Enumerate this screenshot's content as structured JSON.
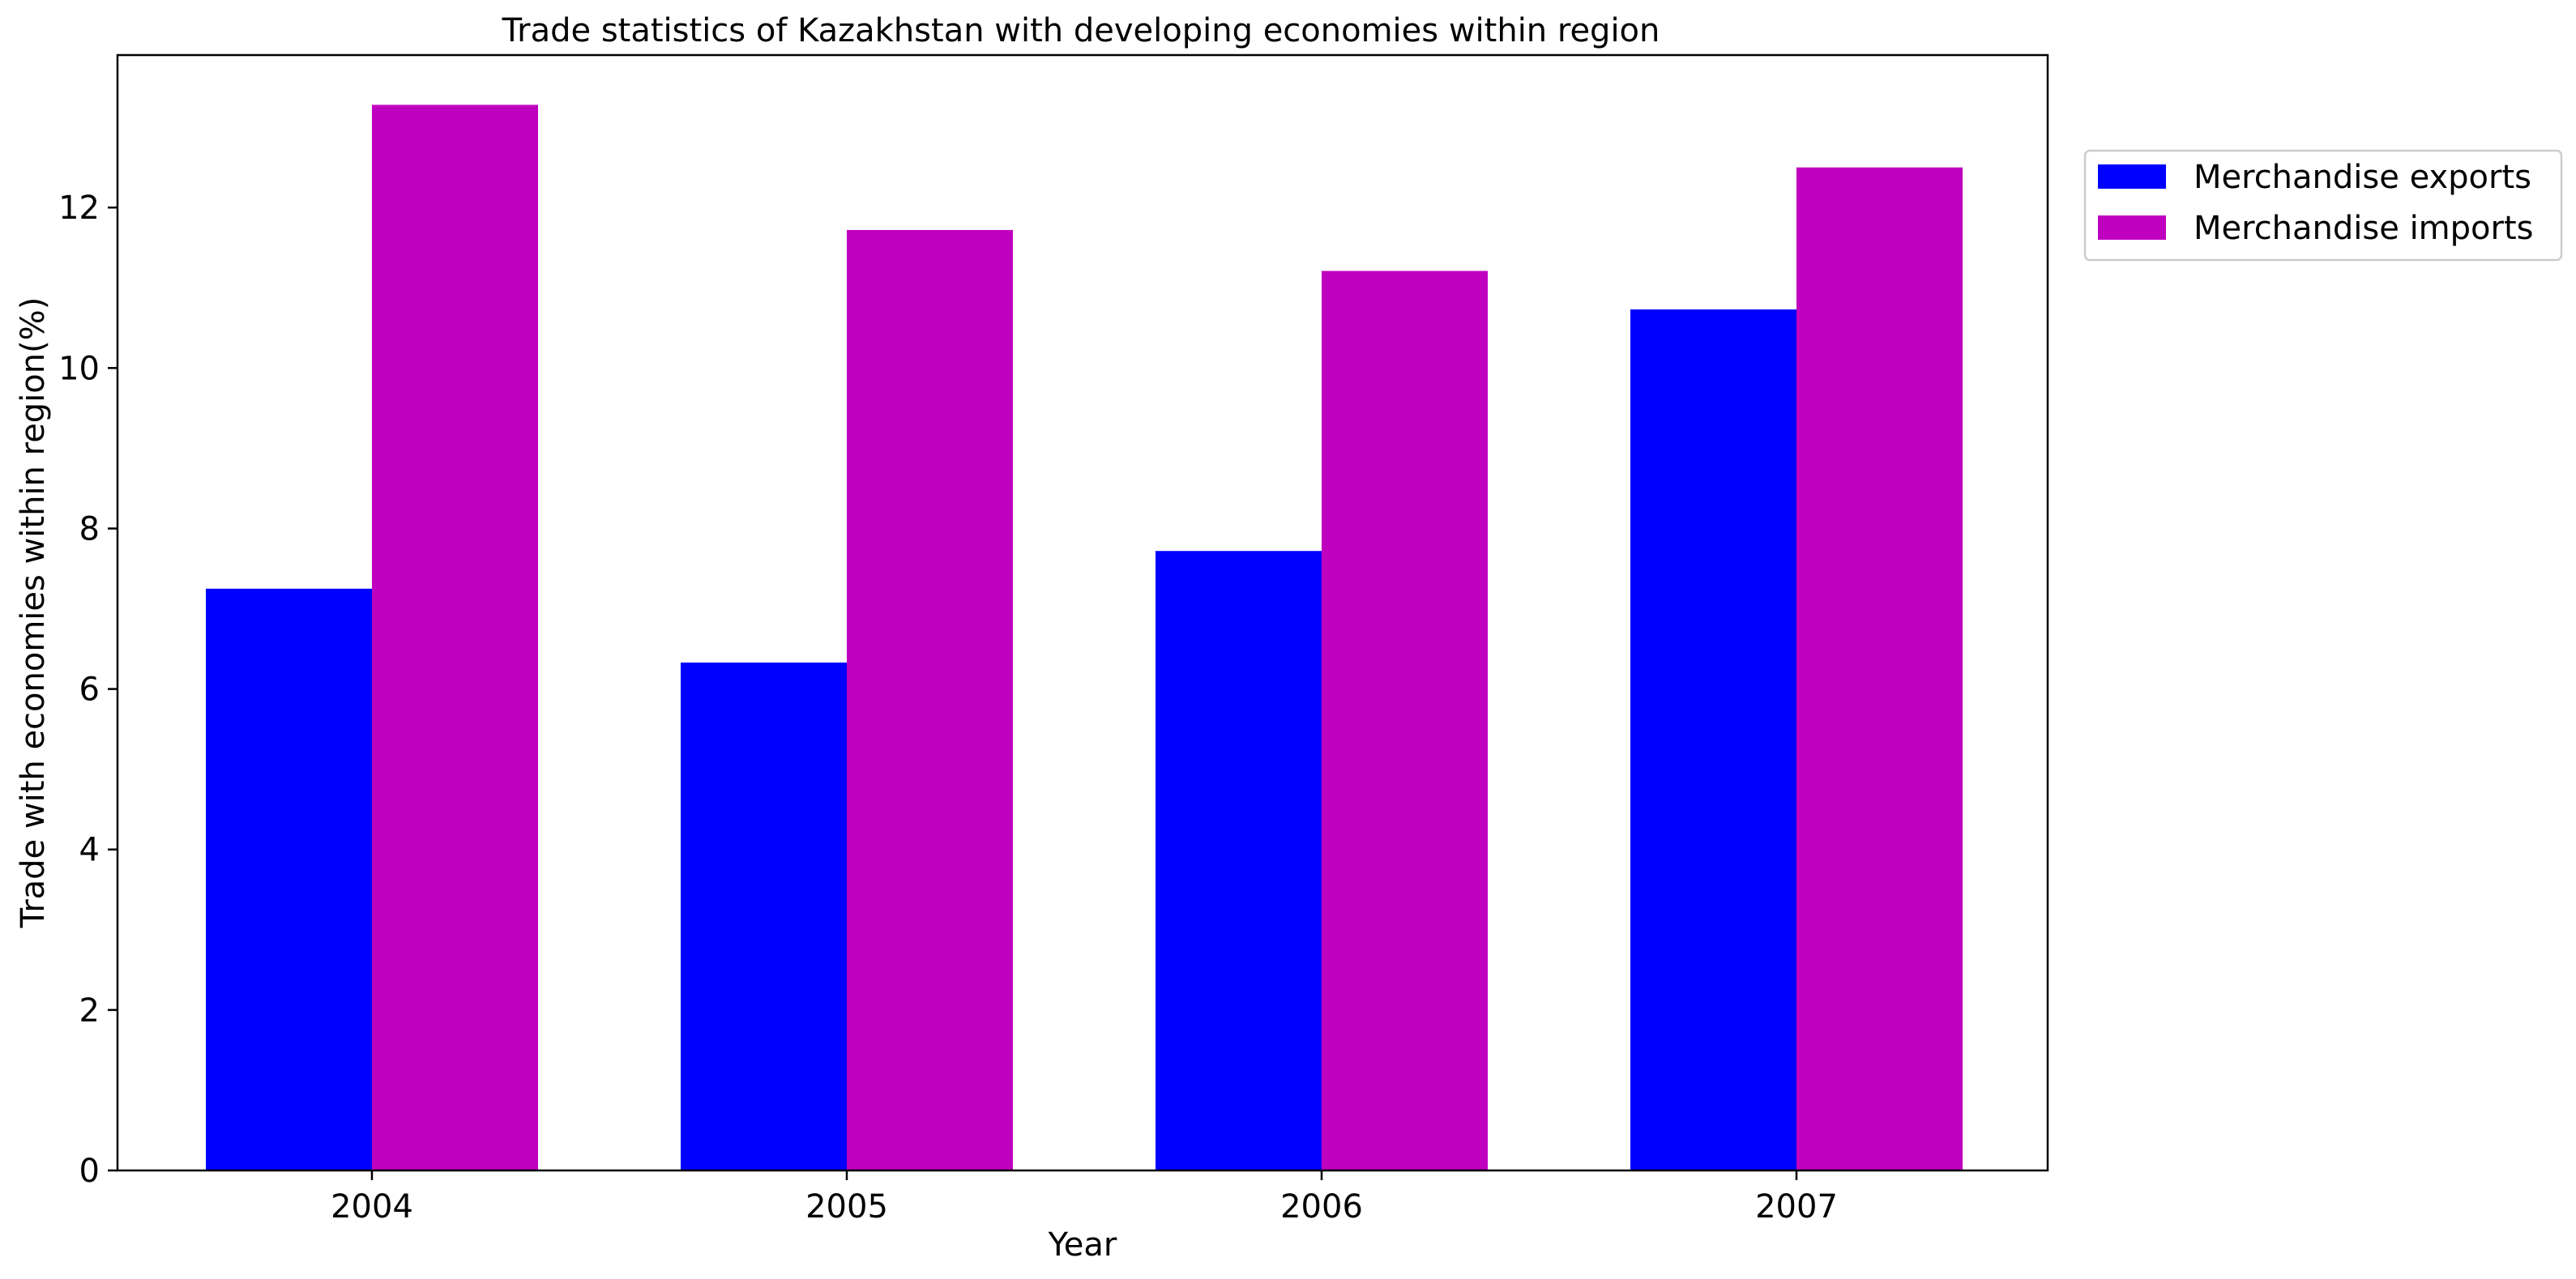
{
  "chart_data": {
    "type": "bar",
    "title": "Trade statistics of Kazakhstan with developing economies within region",
    "xlabel": "Year",
    "ylabel": "Trade with economies within region(%)",
    "categories": [
      "2004",
      "2005",
      "2006",
      "2007"
    ],
    "series": [
      {
        "name": "Merchandise exports",
        "color": "#0000ff",
        "values": [
          7.25,
          6.33,
          7.72,
          10.73
        ]
      },
      {
        "name": "Merchandise imports",
        "color": "#bf00bf",
        "values": [
          13.28,
          11.72,
          11.21,
          12.5
        ]
      }
    ],
    "ylim": [
      0,
      13.9
    ],
    "yticks": [
      0,
      2,
      4,
      6,
      8,
      10,
      12
    ],
    "grid": false,
    "legend_position": "outside-top-right"
  }
}
